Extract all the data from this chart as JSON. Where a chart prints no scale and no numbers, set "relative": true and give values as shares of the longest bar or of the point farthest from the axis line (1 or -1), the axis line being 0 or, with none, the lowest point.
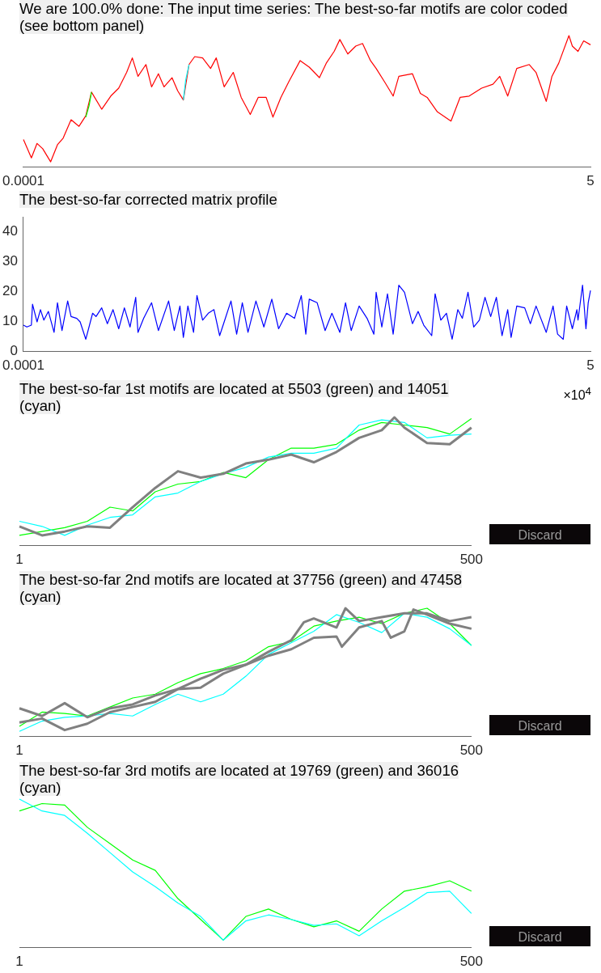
{
  "chart_data": [
    {
      "type": "line",
      "title": "We are 100.0% done: The input time series: The best-so-far motifs are color coded (see bottom panel)",
      "relative": true,
      "xlim": [
        0.0001,
        5
      ],
      "xticks": [
        0.0001,
        5
      ],
      "grid": false,
      "legend": false,
      "series": [
        {
          "color": "#ff0000",
          "x": [
            0.0001,
            0.07,
            0.12,
            0.17,
            0.24,
            0.3,
            0.35,
            0.42,
            0.49,
            0.55,
            0.6,
            0.69,
            0.77,
            0.84,
            0.91,
            0.96,
            1.01,
            1.08,
            1.13,
            1.19,
            1.24,
            1.31,
            1.36,
            1.41,
            1.46,
            1.51,
            1.58,
            1.65,
            1.7,
            1.77,
            1.85,
            1.92,
            2.0,
            2.07,
            2.14,
            2.2,
            2.27,
            2.34,
            2.44,
            2.52,
            2.61,
            2.67,
            2.74,
            2.79,
            2.86,
            2.93,
            2.99,
            3.06,
            3.11,
            3.19,
            3.26,
            3.31,
            3.43,
            3.5,
            3.56,
            3.65,
            3.77,
            3.85,
            3.93,
            4.04,
            4.14,
            4.2,
            4.27,
            4.35,
            4.46,
            4.52,
            4.61,
            4.66,
            4.72,
            4.81,
            4.84,
            4.89,
            4.94,
            5
          ],
          "values": [
            0.21,
            0.07,
            0.18,
            0.14,
            0.04,
            0.17,
            0.22,
            0.36,
            0.31,
            0.39,
            0.57,
            0.44,
            0.54,
            0.6,
            0.72,
            0.83,
            0.69,
            0.78,
            0.61,
            0.71,
            0.61,
            0.68,
            0.58,
            0.51,
            0.78,
            0.84,
            0.83,
            0.75,
            0.83,
            0.61,
            0.72,
            0.53,
            0.4,
            0.53,
            0.53,
            0.38,
            0.53,
            0.65,
            0.81,
            0.76,
            0.68,
            0.79,
            0.88,
            0.97,
            0.86,
            0.92,
            0.94,
            0.81,
            0.75,
            0.64,
            0.54,
            0.69,
            0.71,
            0.56,
            0.53,
            0.42,
            0.35,
            0.53,
            0.54,
            0.6,
            0.63,
            0.69,
            0.54,
            0.75,
            0.78,
            0.72,
            0.5,
            0.69,
            0.79,
            1.0,
            0.92,
            0.88,
            0.96,
            0.93
          ]
        },
        {
          "color": "#00ff00",
          "x": [
            0.55,
            0.58,
            0.6
          ],
          "values": [
            0.38,
            0.47,
            0.57
          ]
        },
        {
          "color": "#00ffff",
          "x": [
            1.41,
            1.43,
            1.46
          ],
          "values": [
            0.51,
            0.66,
            0.78
          ]
        }
      ]
    },
    {
      "type": "line",
      "title": "The best-so-far corrected matrix profile",
      "xlabel": "×10$^{4}$",
      "xlim": [
        0.0001,
        5
      ],
      "xticks": [
        0.0001,
        5
      ],
      "ylim": [
        0,
        45
      ],
      "yticks": [
        0,
        10,
        20,
        30,
        40
      ],
      "grid": false,
      "legend": false,
      "series": [
        {
          "color": "#0000ff",
          "x": [
            0.0001,
            0.03,
            0.07,
            0.08,
            0.12,
            0.15,
            0.18,
            0.22,
            0.27,
            0.3,
            0.34,
            0.39,
            0.42,
            0.47,
            0.5,
            0.55,
            0.61,
            0.64,
            0.69,
            0.74,
            0.79,
            0.84,
            0.89,
            0.94,
            0.99,
            1.01,
            1.06,
            1.13,
            1.19,
            1.28,
            1.33,
            1.38,
            1.41,
            1.45,
            1.5,
            1.53,
            1.58,
            1.63,
            1.68,
            1.73,
            1.77,
            1.83,
            1.88,
            1.93,
            1.98,
            2.05,
            2.12,
            2.19,
            2.25,
            2.32,
            2.39,
            2.45,
            2.49,
            2.52,
            2.59,
            2.66,
            2.72,
            2.79,
            2.84,
            2.89,
            2.96,
            3.03,
            3.09,
            3.11,
            3.16,
            3.21,
            3.26,
            3.31,
            3.36,
            3.43,
            3.48,
            3.53,
            3.6,
            3.63,
            3.68,
            3.73,
            3.78,
            3.83,
            3.87,
            3.92,
            3.97,
            4.02,
            4.07,
            4.12,
            4.17,
            4.22,
            4.27,
            4.3,
            4.35,
            4.42,
            4.47,
            4.52,
            4.61,
            4.67,
            4.71,
            4.76,
            4.79,
            4.84,
            4.88,
            4.89,
            4.93,
            4.96,
            4.98,
            5
          ],
          "values": [
            8.8,
            8.2,
            8.8,
            15.8,
            9.9,
            14.0,
            10.5,
            13.4,
            6.4,
            16.3,
            7.0,
            16.9,
            11.7,
            11.1,
            9.9,
            4.1,
            12.8,
            11.7,
            14.6,
            9.3,
            14.0,
            7.6,
            14.6,
            8.2,
            18.1,
            6.4,
            11.1,
            16.3,
            7.0,
            16.9,
            7.0,
            15.2,
            4.7,
            15.2,
            6.4,
            18.7,
            10.5,
            12.8,
            14.0,
            5.3,
            9.9,
            16.9,
            5.8,
            16.3,
            6.4,
            16.9,
            8.2,
            17.5,
            7.6,
            12.8,
            11.1,
            18.7,
            5.8,
            17.5,
            16.3,
            7.0,
            12.8,
            6.4,
            16.3,
            7.0,
            15.2,
            11.1,
            5.8,
            19.8,
            8.2,
            19.3,
            5.8,
            22.2,
            19.8,
            9.3,
            13.4,
            8.8,
            5.3,
            19.3,
            10.5,
            12.8,
            4.1,
            14.0,
            11.1,
            19.8,
            8.2,
            10.5,
            18.1,
            11.7,
            18.1,
            5.3,
            14.0,
            4.7,
            15.2,
            14.6,
            9.3,
            15.2,
            6.4,
            15.2,
            5.8,
            4.1,
            15.2,
            7.6,
            14.0,
            10.5,
            22.2,
            7.6,
            16.3,
            20.4
          ]
        }
      ]
    },
    {
      "type": "line",
      "title": "The best-so-far 1st motifs are located at 5503 (green) and 14051 (cyan)",
      "relative": true,
      "xlim": [
        1,
        500
      ],
      "xticks": [
        1,
        500
      ],
      "grid": false,
      "legend": false,
      "annotations": [
        "Discard"
      ],
      "series": [
        {
          "color": "#00ff00",
          "x": [
            1,
            26,
            51,
            76,
            101,
            126,
            151,
            176,
            201,
            226,
            251,
            276,
            301,
            326,
            351,
            376,
            401,
            426,
            451,
            476,
            500
          ],
          "values": [
            0.08,
            0.11,
            0.14,
            0.19,
            0.3,
            0.27,
            0.42,
            0.48,
            0.5,
            0.57,
            0.53,
            0.67,
            0.76,
            0.76,
            0.79,
            0.9,
            0.96,
            0.94,
            0.92,
            0.87,
            0.99
          ]
        },
        {
          "color": "#00ffff",
          "x": [
            1,
            26,
            51,
            76,
            101,
            126,
            151,
            176,
            201,
            226,
            251,
            276,
            301,
            326,
            351,
            376,
            401,
            426,
            451,
            476,
            500
          ],
          "values": [
            0.19,
            0.15,
            0.08,
            0.16,
            0.22,
            0.24,
            0.38,
            0.41,
            0.5,
            0.56,
            0.61,
            0.69,
            0.72,
            0.72,
            0.76,
            0.94,
            0.98,
            0.96,
            0.84,
            0.86,
            0.87
          ]
        },
        {
          "color": "#808080",
          "x": [
            1,
            26,
            51,
            76,
            101,
            126,
            151,
            176,
            201,
            226,
            251,
            276,
            301,
            326,
            351,
            376,
            401,
            415,
            426,
            451,
            476,
            500
          ],
          "values": [
            0.15,
            0.08,
            0.11,
            0.15,
            0.14,
            0.3,
            0.45,
            0.58,
            0.53,
            0.56,
            0.64,
            0.67,
            0.71,
            0.65,
            0.73,
            0.84,
            0.9,
            1.0,
            0.92,
            0.8,
            0.79,
            0.92
          ]
        }
      ]
    },
    {
      "type": "line",
      "title": "The best-so-far 2nd motifs are located at 37756 (green) and 47458 (cyan)",
      "relative": true,
      "xlim": [
        1,
        500
      ],
      "xticks": [
        1,
        500
      ],
      "grid": false,
      "legend": false,
      "annotations": [
        "Discard"
      ],
      "series": [
        {
          "color": "#00ff00",
          "x": [
            1,
            26,
            51,
            76,
            101,
            126,
            151,
            176,
            201,
            226,
            251,
            276,
            301,
            326,
            351,
            376,
            401,
            426,
            451,
            476,
            500
          ],
          "values": [
            0.08,
            0.19,
            0.18,
            0.16,
            0.23,
            0.3,
            0.33,
            0.42,
            0.49,
            0.53,
            0.59,
            0.7,
            0.74,
            0.86,
            0.9,
            0.93,
            0.88,
            0.96,
            1.0,
            0.88,
            0.71
          ]
        },
        {
          "color": "#00ffff",
          "x": [
            1,
            26,
            51,
            76,
            101,
            126,
            151,
            176,
            201,
            226,
            251,
            276,
            301,
            326,
            351,
            376,
            401,
            426,
            451,
            476,
            500
          ],
          "values": [
            0.04,
            0.12,
            0.15,
            0.16,
            0.18,
            0.16,
            0.25,
            0.33,
            0.27,
            0.33,
            0.47,
            0.64,
            0.73,
            0.82,
            0.95,
            0.89,
            0.81,
            0.96,
            0.93,
            0.84,
            0.71
          ]
        },
        {
          "color": "#808080",
          "x": [
            1,
            26,
            51,
            76,
            101,
            126,
            151,
            176,
            201,
            226,
            251,
            276,
            301,
            315,
            326,
            351,
            361,
            376,
            401,
            426,
            451,
            476,
            500
          ],
          "values": [
            0.22,
            0.16,
            0.26,
            0.15,
            0.22,
            0.25,
            0.32,
            0.37,
            0.45,
            0.52,
            0.56,
            0.66,
            0.75,
            0.89,
            0.92,
            0.85,
            1.0,
            0.9,
            0.93,
            0.96,
            0.96,
            0.9,
            0.93
          ]
        },
        {
          "color": "#808080",
          "x": [
            1,
            26,
            51,
            76,
            101,
            126,
            151,
            176,
            201,
            226,
            251,
            276,
            301,
            326,
            351,
            357,
            376,
            401,
            411,
            426,
            436,
            451,
            476,
            500
          ],
          "values": [
            0.11,
            0.14,
            0.05,
            0.1,
            0.19,
            0.23,
            0.27,
            0.37,
            0.38,
            0.49,
            0.56,
            0.63,
            0.68,
            0.77,
            0.78,
            0.7,
            0.85,
            0.9,
            0.77,
            0.82,
            0.99,
            0.95,
            0.88,
            0.84
          ]
        }
      ]
    },
    {
      "type": "line",
      "title": "The best-so-far 3rd motifs are located at 19769 (green) and 36016 (cyan)",
      "relative": true,
      "xlim": [
        1,
        500
      ],
      "xticks": [
        1,
        500
      ],
      "grid": false,
      "legend": false,
      "annotations": [
        "Discard"
      ],
      "series": [
        {
          "color": "#00ff00",
          "x": [
            1,
            26,
            51,
            76,
            101,
            126,
            151,
            176,
            201,
            226,
            251,
            276,
            301,
            326,
            351,
            376,
            401,
            426,
            451,
            476,
            500
          ],
          "values": [
            0.92,
            0.97,
            0.96,
            0.81,
            0.7,
            0.59,
            0.52,
            0.33,
            0.19,
            0.05,
            0.21,
            0.26,
            0.19,
            0.14,
            0.18,
            0.11,
            0.26,
            0.38,
            0.41,
            0.45,
            0.38
          ]
        },
        {
          "color": "#00ffff",
          "x": [
            1,
            26,
            51,
            76,
            101,
            126,
            151,
            176,
            201,
            226,
            251,
            276,
            301,
            326,
            351,
            376,
            401,
            426,
            451,
            476,
            500
          ],
          "values": [
            1.0,
            0.92,
            0.89,
            0.77,
            0.64,
            0.51,
            0.41,
            0.3,
            0.21,
            0.05,
            0.18,
            0.22,
            0.19,
            0.15,
            0.16,
            0.08,
            0.18,
            0.27,
            0.37,
            0.38,
            0.23
          ]
        }
      ]
    }
  ]
}
